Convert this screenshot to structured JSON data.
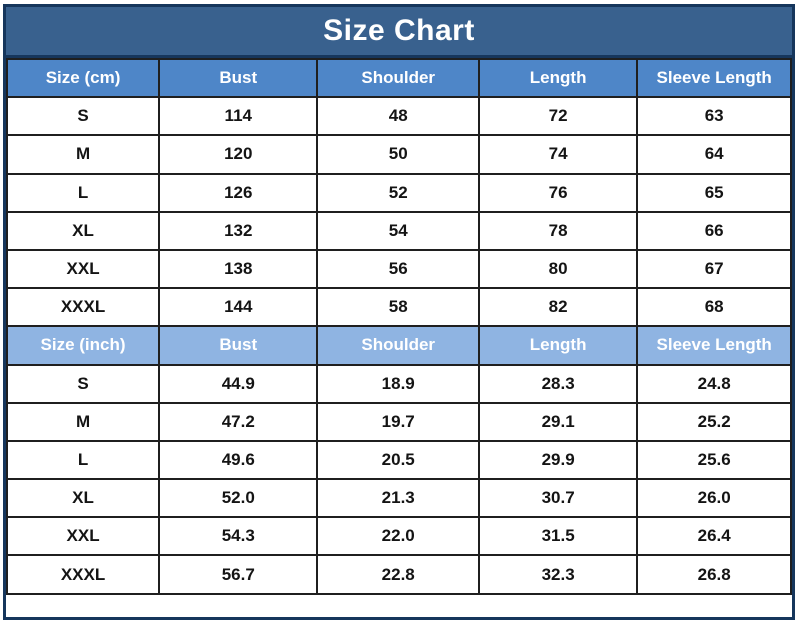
{
  "page": {
    "title": "Size Chart"
  },
  "colors": {
    "title_bg": "#39618E",
    "header_cm_bg": "#4E86C8",
    "header_inch_bg": "#8FB4E2",
    "header_text": "#FFFFFF",
    "body_text": "#141414",
    "outer_border": "#16365C",
    "grid_line": "#1F1F1F",
    "page_bg": "#FFFFFF"
  },
  "chart_data": {
    "type": "table",
    "title": "Size Chart",
    "layout": {
      "column_widths_percent": [
        19.4,
        20.2,
        20.6,
        20.2,
        19.6
      ],
      "grid": true,
      "header_text_color": "#FFFFFF"
    },
    "sections": [
      {
        "unit": "cm",
        "header_style": "hdr-cm",
        "columns": [
          "Size (cm)",
          "Bust",
          "Shoulder",
          "Length",
          "Sleeve Length"
        ],
        "rows": [
          [
            "S",
            "114",
            "48",
            "72",
            "63"
          ],
          [
            "M",
            "120",
            "50",
            "74",
            "64"
          ],
          [
            "L",
            "126",
            "52",
            "76",
            "65"
          ],
          [
            "XL",
            "132",
            "54",
            "78",
            "66"
          ],
          [
            "XXL",
            "138",
            "56",
            "80",
            "67"
          ],
          [
            "XXXL",
            "144",
            "58",
            "82",
            "68"
          ]
        ]
      },
      {
        "unit": "inch",
        "header_style": "hdr-inch",
        "columns": [
          "Size (inch)",
          "Bust",
          "Shoulder",
          "Length",
          "Sleeve Length"
        ],
        "rows": [
          [
            "S",
            "44.9",
            "18.9",
            "28.3",
            "24.8"
          ],
          [
            "M",
            "47.2",
            "19.7",
            "29.1",
            "25.2"
          ],
          [
            "L",
            "49.6",
            "20.5",
            "29.9",
            "25.6"
          ],
          [
            "XL",
            "52.0",
            "21.3",
            "30.7",
            "26.0"
          ],
          [
            "XXL",
            "54.3",
            "22.0",
            "31.5",
            "26.4"
          ],
          [
            "XXXL",
            "56.7",
            "22.8",
            "32.3",
            "26.8"
          ]
        ]
      }
    ]
  }
}
